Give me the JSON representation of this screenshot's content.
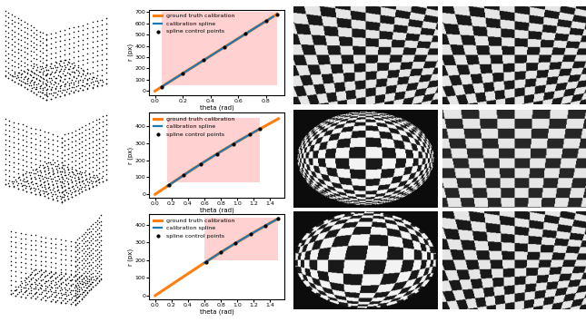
{
  "chart_data": [
    {
      "type": "line",
      "x_label": "theta (rad)",
      "y_label": "r (px)",
      "legend": "upper left",
      "xlim": [
        -0.04,
        0.93
      ],
      "ylim": [
        -35,
        720
      ],
      "xticks": [
        {
          "value": 0,
          "label": "0.0"
        },
        0.2,
        0.4,
        0.6,
        0.8
      ],
      "yticks": [
        0,
        100,
        200,
        300,
        400,
        500,
        600,
        700
      ],
      "highlight": {
        "x": [
          0.05,
          0.88
        ],
        "y": [
          50,
          700
        ],
        "color": "#ffb3b3"
      },
      "series": [
        {
          "name": "ground truth calibration",
          "type": "line",
          "color": "#ff7f0e",
          "x": [
            0,
            0.1,
            0.2,
            0.3,
            0.4,
            0.5,
            0.6,
            0.7,
            0.8,
            0.88
          ],
          "values": [
            0,
            78,
            156,
            234,
            311,
            389,
            466,
            543,
            620,
            681
          ]
        },
        {
          "name": "calibration spline",
          "type": "line",
          "color": "#1f77b4",
          "x": [
            0.05,
            0.15,
            0.25,
            0.35,
            0.45,
            0.55,
            0.65,
            0.75,
            0.85
          ],
          "values": [
            39,
            117,
            195,
            272,
            350,
            427,
            505,
            582,
            658
          ]
        },
        {
          "name": "spline control points",
          "type": "scatter",
          "color": "#000000",
          "marker": "o",
          "x": [
            0.05,
            0.2,
            0.35,
            0.5,
            0.65,
            0.8,
            0.88
          ],
          "values": [
            39,
            156,
            272,
            389,
            505,
            620,
            681
          ]
        }
      ]
    },
    {
      "type": "line",
      "x_label": "theta (rad)",
      "y_label": "r (px)",
      "legend": "upper left",
      "xlim": [
        -0.07,
        1.57
      ],
      "ylim": [
        -22,
        480
      ],
      "xticks": [
        {
          "value": 0,
          "label": "0.0"
        },
        0.2,
        0.4,
        0.6,
        0.8,
        {
          "value": 1,
          "label": "1.0"
        },
        1.2,
        1.4
      ],
      "yticks": [
        0,
        100,
        200,
        300,
        400
      ],
      "highlight": {
        "x": [
          0.15,
          1.27
        ],
        "y": [
          70,
          450
        ],
        "color": "#ffb3b3"
      },
      "series": [
        {
          "name": "ground truth calibration",
          "type": "line",
          "color": "#ff7f0e",
          "x": [
            0,
            0.2,
            0.4,
            0.6,
            0.8,
            1.0,
            1.2,
            1.4,
            1.5
          ],
          "values": [
            0,
            65,
            130,
            192,
            252,
            310,
            365,
            418,
            445
          ]
        },
        {
          "name": "calibration spline",
          "type": "line",
          "color": "#1f77b4",
          "x": [
            0.15,
            0.3,
            0.45,
            0.6,
            0.75,
            0.9,
            1.05,
            1.2,
            1.27
          ],
          "values": [
            49,
            97,
            146,
            192,
            237,
            281,
            324,
            365,
            385
          ]
        },
        {
          "name": "spline control points",
          "type": "scatter",
          "color": "#000000",
          "marker": "o",
          "x": [
            0.17,
            0.35,
            0.55,
            0.75,
            0.95,
            1.15,
            1.27
          ],
          "values": [
            55,
            113,
            177,
            237,
            295,
            351,
            385
          ]
        }
      ]
    },
    {
      "type": "line",
      "x_label": "theta (rad)",
      "y_label": "r (px)",
      "legend": "upper left",
      "xlim": [
        -0.07,
        1.57
      ],
      "ylim": [
        -22,
        460
      ],
      "xticks": [
        {
          "value": 0,
          "label": "0.0"
        },
        0.2,
        0.4,
        0.6,
        0.8,
        {
          "value": 1,
          "label": "1.0"
        },
        1.2,
        1.4
      ],
      "yticks": [
        0,
        100,
        200,
        300,
        400
      ],
      "highlight": {
        "x": [
          0.6,
          1.5
        ],
        "y": [
          200,
          440
        ],
        "color": "#ffb3b3"
      },
      "series": [
        {
          "name": "ground truth calibration",
          "type": "line",
          "color": "#ff7f0e",
          "x": [
            0,
            0.2,
            0.4,
            0.6,
            0.8,
            1.0,
            1.2,
            1.4,
            1.5
          ],
          "values": [
            0,
            62,
            124,
            185,
            245,
            302,
            357,
            410,
            436
          ]
        },
        {
          "name": "calibration spline",
          "type": "line",
          "color": "#1f77b4",
          "x": [
            0.6,
            0.75,
            0.9,
            1.05,
            1.2,
            1.35,
            1.5
          ],
          "values": [
            185,
            230,
            274,
            316,
            357,
            397,
            436
          ]
        },
        {
          "name": "spline control points",
          "type": "scatter",
          "color": "#000000",
          "marker": "o",
          "x": [
            0.62,
            0.8,
            0.98,
            1.16,
            1.34,
            1.5
          ],
          "values": [
            191,
            245,
            297,
            346,
            394,
            436
          ]
        }
      ]
    }
  ]
}
